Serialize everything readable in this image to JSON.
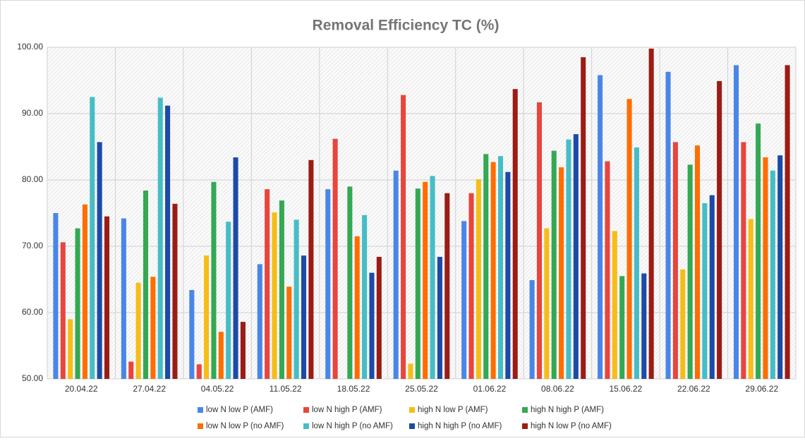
{
  "chart_data": {
    "type": "bar",
    "title": "Removal Efficiency TC (%)",
    "categories": [
      "20.04.22",
      "27.04.22",
      "04.05.22",
      "11.05.22",
      "18.05.22",
      "25.05.22",
      "01.06.22",
      "08.06.22",
      "15.06.22",
      "22.06.22",
      "29.06.22"
    ],
    "series": [
      {
        "name": "low N low P (AMF)",
        "color": "#4a86e8",
        "values": [
          75.0,
          74.2,
          63.4,
          67.3,
          78.6,
          81.4,
          73.8,
          64.9,
          95.8,
          96.3,
          97.3
        ]
      },
      {
        "name": "low N high P (AMF)",
        "color": "#e8453c",
        "values": [
          70.6,
          52.6,
          52.2,
          78.6,
          86.2,
          92.8,
          78.0,
          91.7,
          82.8,
          85.7,
          85.7
        ]
      },
      {
        "name": "high N low P (AMF)",
        "color": "#f6bd16",
        "values": [
          59.0,
          64.5,
          68.6,
          75.1,
          null,
          52.3,
          80.1,
          72.7,
          72.3,
          66.5,
          74.1
        ]
      },
      {
        "name": "high N high P (AMF)",
        "color": "#34a853",
        "values": [
          72.7,
          78.4,
          79.7,
          76.9,
          79.0,
          78.7,
          83.9,
          84.4,
          65.5,
          82.3,
          88.5
        ]
      },
      {
        "name": "low N low P (no AMF)",
        "color": "#ff6d01",
        "values": [
          76.3,
          65.4,
          57.1,
          63.9,
          71.5,
          79.7,
          82.7,
          81.9,
          92.2,
          85.2,
          83.4
        ]
      },
      {
        "name": "low N high P (no AMF)",
        "color": "#46bdc6",
        "values": [
          92.5,
          92.4,
          73.7,
          74.0,
          74.7,
          80.6,
          83.6,
          86.1,
          84.9,
          76.5,
          81.4
        ]
      },
      {
        "name": "high N high P (no AMF)",
        "color": "#1c4aa8",
        "values": [
          85.7,
          91.2,
          83.4,
          68.6,
          66.0,
          68.4,
          81.2,
          86.9,
          65.9,
          77.7,
          83.7
        ]
      },
      {
        "name": "high N low P (no AMF)",
        "color": "#9b1c14",
        "values": [
          74.5,
          76.4,
          58.6,
          83.0,
          68.4,
          78.0,
          93.7,
          98.5,
          99.8,
          94.9,
          97.3
        ]
      }
    ],
    "ylim": [
      50,
      100
    ],
    "yticks": [
      {
        "value": 50,
        "label": "50.00"
      },
      {
        "value": 60,
        "label": "60.00"
      },
      {
        "value": 70,
        "label": "70.00"
      },
      {
        "value": 80,
        "label": "80.00"
      },
      {
        "value": 90,
        "label": "90.00"
      },
      {
        "value": 100,
        "label": "100.00"
      }
    ],
    "grid": true
  }
}
